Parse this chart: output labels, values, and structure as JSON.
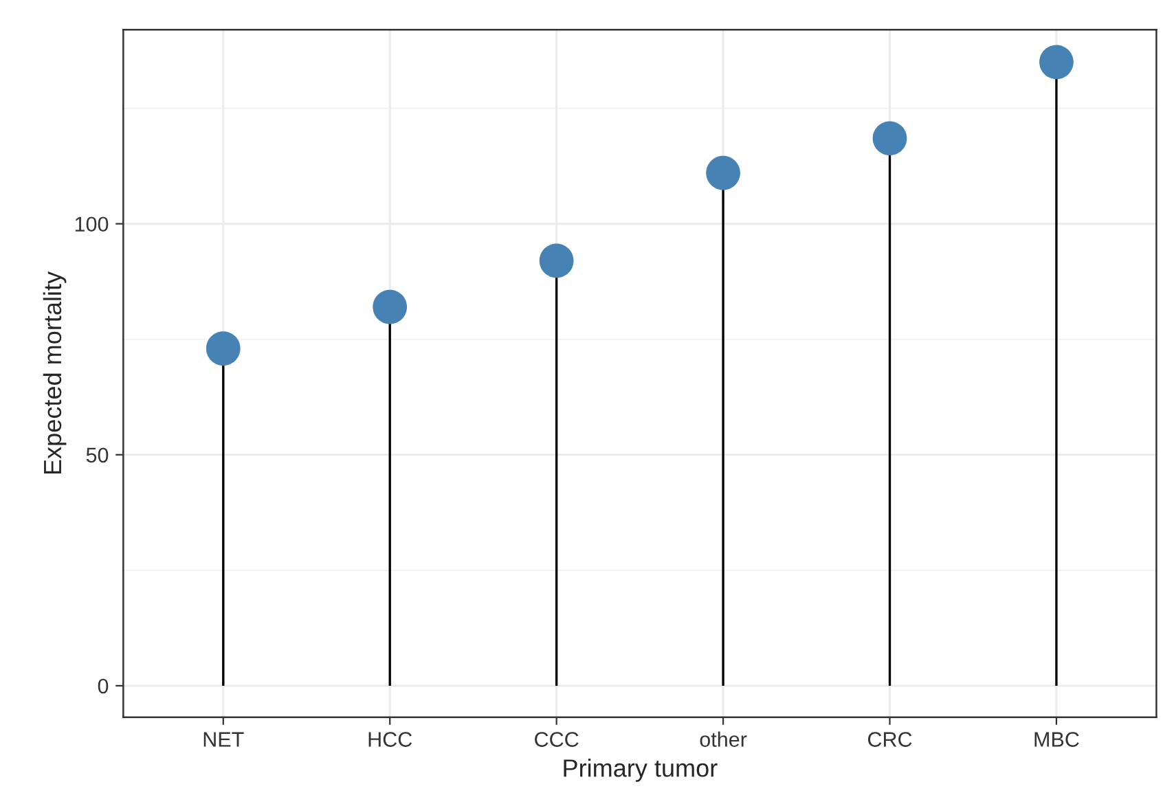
{
  "chart_data": {
    "type": "lollipop",
    "xlabel": "Primary tumor",
    "ylabel": "Expected mortality",
    "categories": [
      "NET",
      "HCC",
      "CCC",
      "other",
      "CRC",
      "MBC"
    ],
    "series": [
      {
        "color": "#4682b4",
        "values": [
          73,
          82,
          92,
          111,
          118.5,
          135
        ]
      }
    ],
    "ylim": [
      -6.8,
      142
    ],
    "yticks": [
      0,
      50,
      100
    ],
    "grid": true,
    "marker": "circle"
  }
}
